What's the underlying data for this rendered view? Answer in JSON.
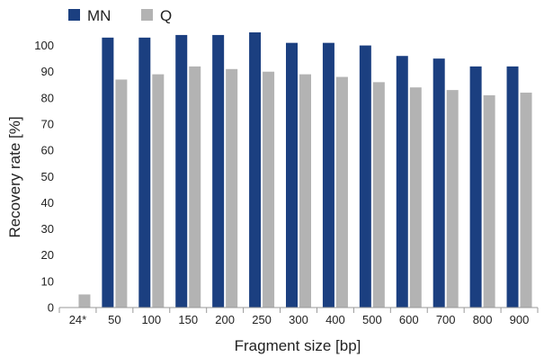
{
  "chart_data": {
    "type": "bar",
    "title": "",
    "xlabel": "Fragment size [bp]",
    "ylabel": "Recovery rate [%]",
    "ylim": [
      0,
      105
    ],
    "yticks": [
      "0",
      "10",
      "20",
      "30",
      "40",
      "50",
      "60",
      "70",
      "80",
      "90",
      "100"
    ],
    "categories": [
      "24*",
      "50",
      "100",
      "150",
      "200",
      "250",
      "300",
      "400",
      "500",
      "600",
      "700",
      "800",
      "900"
    ],
    "series": [
      {
        "name": "MN",
        "color": "#1b3f80",
        "values": [
          0,
          103,
          103,
          104,
          104,
          105,
          101,
          101,
          100,
          96,
          95,
          92,
          92
        ]
      },
      {
        "name": "Q",
        "color": "#b3b3b3",
        "values": [
          5,
          87,
          89,
          92,
          91,
          90,
          89,
          88,
          86,
          84,
          83,
          81,
          82
        ]
      }
    ],
    "legend": "top-left",
    "grid": false
  }
}
